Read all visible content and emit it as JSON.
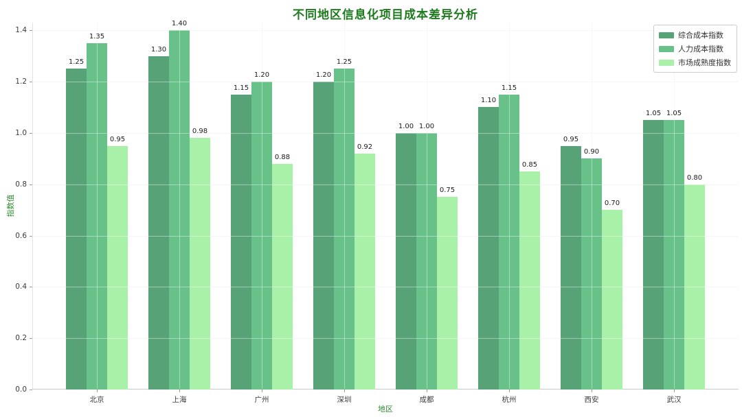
{
  "chart_data": {
    "type": "bar",
    "title": "不同地区信息化项目成本差异分析",
    "xlabel": "地区",
    "ylabel": "指数值",
    "categories": [
      "北京",
      "上海",
      "广州",
      "深圳",
      "成都",
      "杭州",
      "西安",
      "武汉"
    ],
    "series": [
      {
        "name": "综合成本指数",
        "color": "#57a377",
        "values": [
          1.25,
          1.3,
          1.15,
          1.2,
          1.0,
          1.1,
          0.95,
          1.05
        ]
      },
      {
        "name": "人力成本指数",
        "color": "#67c189",
        "values": [
          1.35,
          1.4,
          1.2,
          1.25,
          1.0,
          1.15,
          0.9,
          1.05
        ]
      },
      {
        "name": "市场成熟度指数",
        "color": "#a9f0a9",
        "values": [
          0.95,
          0.98,
          0.88,
          0.92,
          0.75,
          0.85,
          0.7,
          0.8
        ]
      }
    ],
    "yticks": [
      0.0,
      0.2,
      0.4,
      0.6,
      0.8,
      1.0,
      1.2,
      1.4
    ],
    "ylim": [
      0,
      1.43
    ],
    "grid": true,
    "grid_over_bars": true,
    "legend_position": "top-right",
    "value_labels": true,
    "value_label_decimals": 2
  },
  "colors": {
    "title": "#1d7a1d",
    "axis_label": "#2f8b2f",
    "tick_label": "#3a3a3a",
    "grid": "#f0f0f0",
    "spine": "#c9c9c9",
    "legend_border": "#cccccc"
  }
}
